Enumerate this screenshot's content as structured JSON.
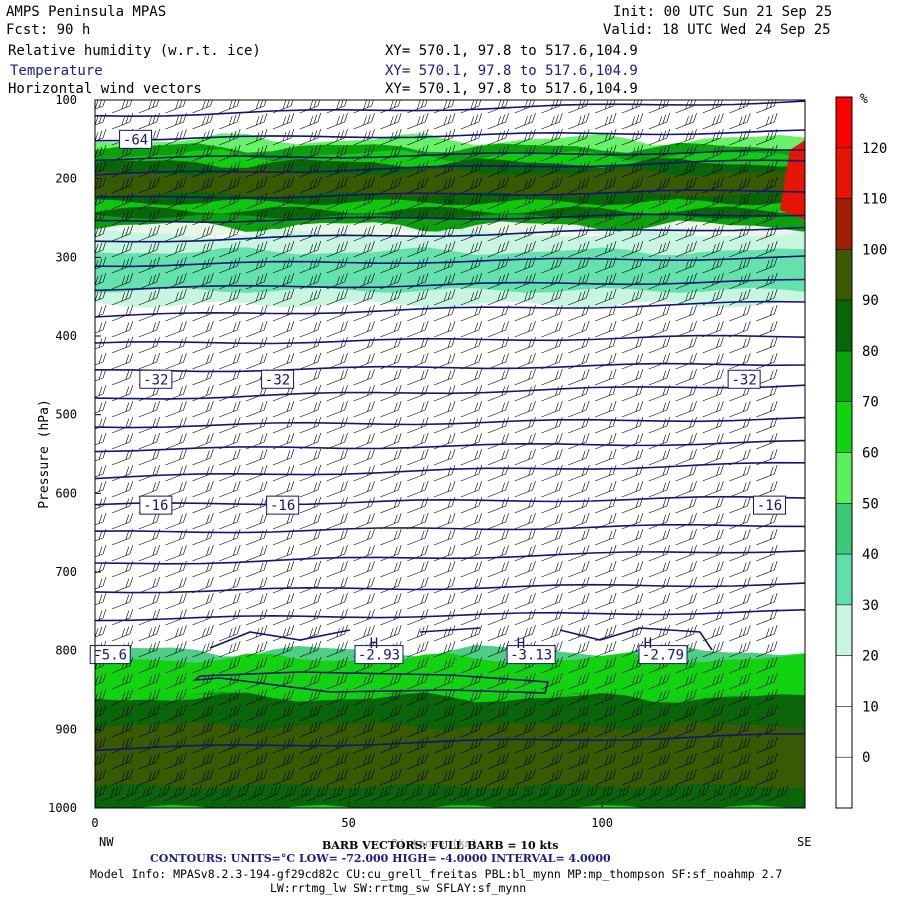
{
  "header": {
    "model": "AMPS Peninsula MPAS",
    "fcst": "Fcst:   90 h",
    "init": "Init: 00 UTC Sun 21 Sep 25",
    "valid": "Valid: 18 UTC Wed 24 Sep 25",
    "fields": [
      {
        "name": "Relative humidity (w.r.t. ice)",
        "xy": "XY= 570.1, 97.8 to 517.6,104.9",
        "color": "#000000"
      },
      {
        "name": "Temperature",
        "xy": "XY= 570.1, 97.8 to 517.6,104.9",
        "color": "#1a1a8c"
      },
      {
        "name": "Horizontal wind vectors",
        "xy": "XY= 570.1, 97.8 to 517.6,104.9",
        "color": "#000000"
      }
    ]
  },
  "footer": {
    "barb_note": "BARB VECTORS: FULL BARB = 10 kts",
    "xlabel_overlap": "Distance (km)",
    "contours": "CONTOURS:  UNITS=°C  LOW= -72.000      HIGH= -4.0000      INTERVAL=   4.0000",
    "model_info": "Model Info: MPASv8.2.3-194-gf29cd82c CU:cu_grell_freitas PBL:bl_mynn MP:mp_thompson SF:sf_noahmp 2.7",
    "model_info2": "LW:rrtmg_lw SW:rrtmg_sw SFLAY:sf_mynn"
  },
  "colors": {
    "rh_levels": [
      "#ffffff",
      "#ffffff",
      "#ffffff",
      "#ffffff",
      "#c8f5e0",
      "#5fdfaa",
      "#3cc878",
      "#5af05a",
      "#12d212",
      "#0ca00c",
      "#0a640a",
      "#3c5a05",
      "#a01e05",
      "#e61405",
      "#ff0000"
    ],
    "contour": "#141478"
  },
  "chart_data": {
    "type": "heatmap",
    "title": "",
    "xlabel": "Distance (km)",
    "ylabel": "Pressure (hPa)",
    "xlim": [
      0,
      140
    ],
    "ylim": [
      1000,
      100
    ],
    "x_ticks": [
      0,
      50,
      100
    ],
    "y_ticks": [
      100,
      200,
      300,
      400,
      500,
      600,
      700,
      800,
      900,
      1000
    ],
    "x_end_labels": [
      "NW",
      "SE"
    ],
    "colorbar": {
      "unit": "%",
      "ticks": [
        0,
        10,
        20,
        30,
        40,
        50,
        60,
        70,
        80,
        90,
        100,
        110,
        120
      ]
    },
    "temperature_contour_labels": [
      {
        "label": "-64",
        "x": 8,
        "p": 150
      },
      {
        "label": "-32",
        "x": 12,
        "p": 455
      },
      {
        "label": "-32",
        "x": 36,
        "p": 455
      },
      {
        "label": "-32",
        "x": 128,
        "p": 455
      },
      {
        "label": "-16",
        "x": 12,
        "p": 615
      },
      {
        "label": "-16",
        "x": 37,
        "p": 615
      },
      {
        "label": "-16",
        "x": 133,
        "p": 615
      },
      {
        "label": "-5.6",
        "x": 3,
        "p": 805
      },
      {
        "label": "-2.93",
        "x": 56,
        "p": 805
      },
      {
        "label": "-3.13",
        "x": 86,
        "p": 805
      },
      {
        "label": "-2.79",
        "x": 112,
        "p": 805
      },
      {
        "label": "H",
        "x": 55,
        "p": 790
      },
      {
        "label": "H",
        "x": 84,
        "p": 790
      },
      {
        "label": "H",
        "x": 109,
        "p": 790
      }
    ],
    "rh_layers": [
      {
        "p_top": 160,
        "p_bottom": 270,
        "rh_percent": 90
      },
      {
        "p_top": 180,
        "p_bottom": 230,
        "rh_percent": 100
      },
      {
        "p_top": 270,
        "p_bottom": 360,
        "rh_percent": 40
      },
      {
        "p_top": 810,
        "p_bottom": 1000,
        "rh_percent": 85
      },
      {
        "p_top": 860,
        "p_bottom": 1000,
        "rh_percent": 100
      }
    ],
    "wind_barbs": "westerly to northwesterly, strongest aloft and near the surface"
  }
}
